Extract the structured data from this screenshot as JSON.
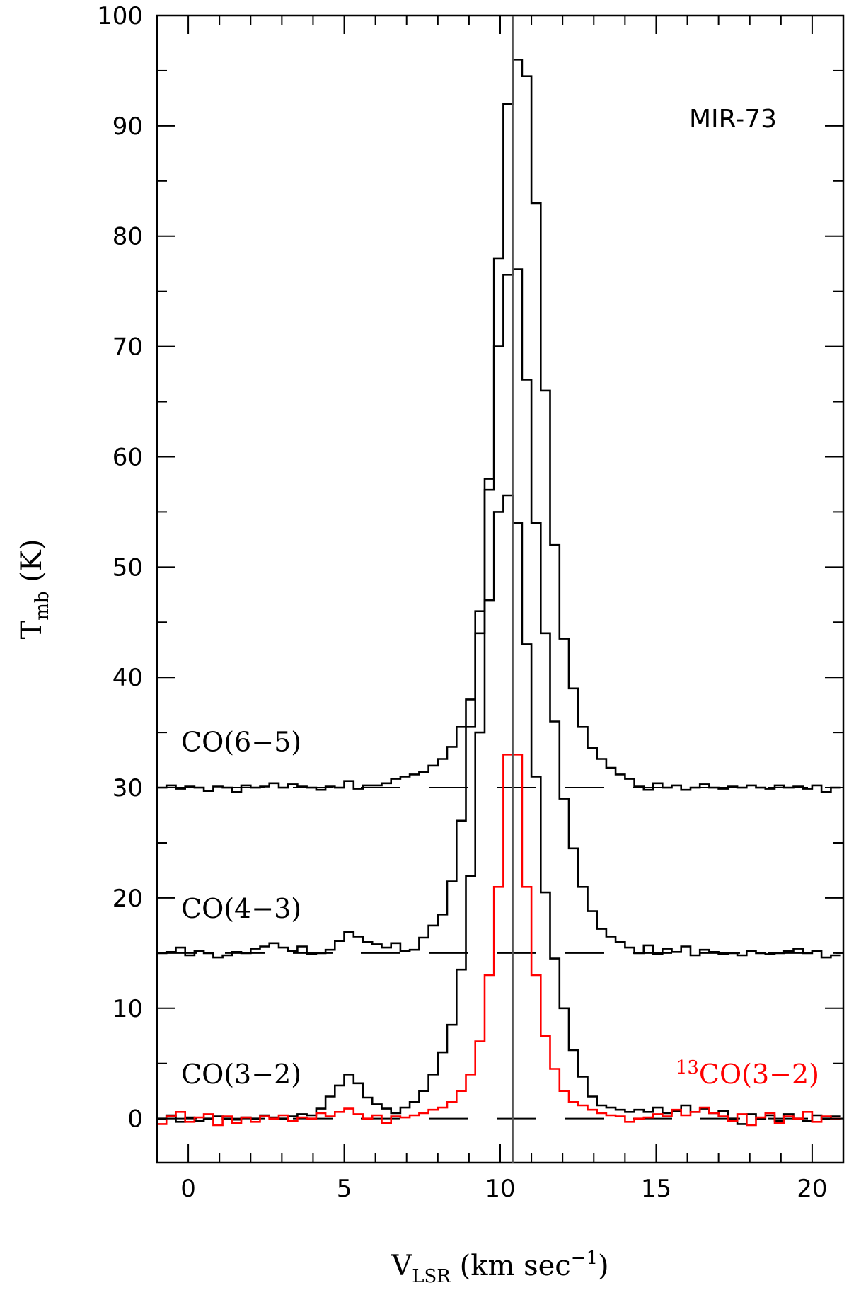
{
  "chart_data": {
    "type": "line",
    "title": "MIR-73",
    "xlabel": {
      "main": "V",
      "sub": "LSR",
      "unit_pre": " (km sec",
      "unit_sup": "−1",
      "unit_post": ")"
    },
    "ylabel": {
      "main": "T",
      "sub": "mb",
      "unit": " (K)"
    },
    "xlim": [
      -1,
      21
    ],
    "ylim": [
      -4,
      100
    ],
    "x_ticks": [
      0,
      5,
      10,
      15,
      20
    ],
    "y_ticks": [
      0,
      10,
      20,
      30,
      40,
      50,
      60,
      70,
      80,
      90,
      100
    ],
    "channel_width": 0.3,
    "central_velocity": 10.4,
    "series": [
      {
        "name": "CO(6−5)",
        "label_pre": "",
        "label_sup": "",
        "label_main": "CO(6−5)",
        "color": "#000000",
        "baseline": 30,
        "x": [
          -1.0,
          -0.7,
          -0.4,
          -0.1,
          0.2,
          0.5,
          0.8,
          1.1,
          1.4,
          1.7,
          2.0,
          2.3,
          2.6,
          2.9,
          3.2,
          3.5,
          3.8,
          4.1,
          4.4,
          4.7,
          5.0,
          5.3,
          5.6,
          5.9,
          6.2,
          6.5,
          6.8,
          7.1,
          7.4,
          7.7,
          8.0,
          8.3,
          8.6,
          8.9,
          9.2,
          9.5,
          9.8,
          10.1,
          10.4,
          10.7,
          11.0,
          11.3,
          11.6,
          11.9,
          12.2,
          12.5,
          12.8,
          13.1,
          13.4,
          13.7,
          14.0,
          14.3,
          14.6,
          14.9,
          15.2,
          15.5,
          15.8,
          16.1,
          16.4,
          16.7,
          17.0,
          17.3,
          17.6,
          17.9,
          18.2,
          18.5,
          18.8,
          19.1,
          19.4,
          19.7,
          20.0,
          20.3,
          20.6
        ],
        "values": [
          30.0,
          30.2,
          29.9,
          30.1,
          30.0,
          29.7,
          30.1,
          30.0,
          29.6,
          30.2,
          30.0,
          30.1,
          30.4,
          30.0,
          30.3,
          30.1,
          30.0,
          29.8,
          30.1,
          30.0,
          30.6,
          29.9,
          30.2,
          30.2,
          30.4,
          30.8,
          31.0,
          31.2,
          31.4,
          32.0,
          32.6,
          33.7,
          35.5,
          38.0,
          44.0,
          58.0,
          78.0,
          92.0,
          96.0,
          94.5,
          83.0,
          66.0,
          52.0,
          43.5,
          39.0,
          35.5,
          33.6,
          32.6,
          31.8,
          31.2,
          30.8,
          30.1,
          29.8,
          30.4,
          30.0,
          30.2,
          29.8,
          30.0,
          30.3,
          30.0,
          29.9,
          30.1,
          30.0,
          30.2,
          30.0,
          29.9,
          30.2,
          30.0,
          30.1,
          29.9,
          30.2,
          29.6,
          30.0
        ]
      },
      {
        "name": "CO(4−3)",
        "label_pre": "",
        "label_sup": "",
        "label_main": "CO(4−3)",
        "color": "#000000",
        "baseline": 15,
        "x": [
          -1.0,
          -0.7,
          -0.4,
          -0.1,
          0.2,
          0.5,
          0.8,
          1.1,
          1.4,
          1.7,
          2.0,
          2.3,
          2.6,
          2.9,
          3.2,
          3.5,
          3.8,
          4.1,
          4.4,
          4.7,
          5.0,
          5.3,
          5.6,
          5.9,
          6.2,
          6.5,
          6.8,
          7.1,
          7.4,
          7.7,
          8.0,
          8.3,
          8.6,
          8.9,
          9.2,
          9.5,
          9.8,
          10.1,
          10.4,
          10.7,
          11.0,
          11.3,
          11.6,
          11.9,
          12.2,
          12.5,
          12.8,
          13.1,
          13.4,
          13.7,
          14.0,
          14.3,
          14.6,
          14.9,
          15.2,
          15.5,
          15.8,
          16.1,
          16.4,
          16.7,
          17.0,
          17.3,
          17.6,
          17.9,
          18.2,
          18.5,
          18.8,
          19.1,
          19.4,
          19.7,
          20.0,
          20.3,
          20.6
        ],
        "values": [
          15.0,
          15.1,
          15.5,
          14.8,
          15.2,
          15.0,
          14.6,
          14.8,
          15.1,
          15.0,
          15.4,
          15.6,
          15.9,
          15.5,
          15.2,
          15.6,
          14.9,
          15.0,
          15.3,
          16.1,
          16.9,
          16.5,
          16.0,
          15.8,
          15.5,
          15.9,
          15.2,
          15.3,
          16.4,
          17.5,
          18.5,
          21.5,
          27.0,
          35.5,
          46.0,
          57.0,
          70.0,
          76.5,
          77.0,
          67.0,
          54.0,
          44.0,
          36.0,
          29.0,
          24.5,
          21.0,
          18.8,
          17.2,
          16.5,
          16.0,
          15.5,
          15.0,
          15.7,
          14.9,
          15.4,
          15.1,
          15.6,
          14.8,
          15.3,
          15.1,
          14.9,
          15.0,
          14.8,
          15.2,
          15.0,
          14.9,
          15.0,
          15.2,
          15.4,
          15.0,
          15.2,
          14.6,
          14.8
        ]
      },
      {
        "name": "CO(3−2)",
        "label_pre": "",
        "label_sup": "",
        "label_main": "CO(3−2)",
        "color": "#000000",
        "baseline": 0,
        "x": [
          -1.0,
          -0.7,
          -0.4,
          -0.1,
          0.2,
          0.5,
          0.8,
          1.1,
          1.4,
          1.7,
          2.0,
          2.3,
          2.6,
          2.9,
          3.2,
          3.5,
          3.8,
          4.1,
          4.4,
          4.7,
          5.0,
          5.3,
          5.6,
          5.9,
          6.2,
          6.5,
          6.8,
          7.1,
          7.4,
          7.7,
          8.0,
          8.3,
          8.6,
          8.9,
          9.2,
          9.5,
          9.8,
          10.1,
          10.4,
          10.7,
          11.0,
          11.3,
          11.6,
          11.9,
          12.2,
          12.5,
          12.8,
          13.1,
          13.4,
          13.7,
          14.0,
          14.3,
          14.6,
          14.9,
          15.2,
          15.5,
          15.8,
          16.1,
          16.4,
          16.7,
          17.0,
          17.3,
          17.6,
          17.9,
          18.2,
          18.5,
          18.8,
          19.1,
          19.4,
          19.7,
          20.0,
          20.3,
          20.6
        ],
        "values": [
          0.0,
          0.3,
          -0.3,
          0.1,
          -0.2,
          0.0,
          0.2,
          0.0,
          -0.1,
          0.1,
          0.0,
          0.3,
          0.1,
          0.0,
          0.2,
          0.4,
          0.3,
          0.9,
          2.0,
          3.0,
          4.0,
          3.2,
          1.9,
          1.3,
          0.9,
          0.5,
          1.0,
          1.5,
          2.5,
          4.0,
          6.0,
          8.5,
          13.5,
          22.0,
          35.0,
          47.0,
          55.0,
          56.5,
          54.0,
          43.0,
          31.0,
          20.5,
          14.5,
          10.0,
          6.2,
          3.8,
          2.0,
          1.2,
          1.0,
          0.8,
          0.6,
          0.8,
          0.6,
          1.0,
          0.5,
          0.7,
          1.2,
          0.6,
          0.9,
          0.5,
          0.7,
          0.0,
          -0.5,
          0.4,
          0.0,
          0.3,
          -0.2,
          0.4,
          0.0,
          -0.2,
          0.3,
          0.0,
          0.2
        ]
      },
      {
        "name": "13CO(3−2)",
        "label_pre": "",
        "label_sup": "13",
        "label_main": "CO(3−2)",
        "color": "#ff0000",
        "baseline": 0,
        "x": [
          -1.0,
          -0.7,
          -0.4,
          -0.1,
          0.2,
          0.5,
          0.8,
          1.1,
          1.4,
          1.7,
          2.0,
          2.3,
          2.6,
          2.9,
          3.2,
          3.5,
          3.8,
          4.1,
          4.4,
          4.7,
          5.0,
          5.3,
          5.6,
          5.9,
          6.2,
          6.5,
          6.8,
          7.1,
          7.4,
          7.7,
          8.0,
          8.3,
          8.6,
          8.9,
          9.2,
          9.5,
          9.8,
          10.1,
          10.4,
          10.7,
          11.0,
          11.3,
          11.6,
          11.9,
          12.2,
          12.5,
          12.8,
          13.1,
          13.4,
          13.7,
          14.0,
          14.3,
          14.6,
          14.9,
          15.2,
          15.5,
          15.8,
          16.1,
          16.4,
          16.7,
          17.0,
          17.3,
          17.6,
          17.9,
          18.2,
          18.5,
          18.8,
          19.1,
          19.4,
          19.7,
          20.0,
          20.3,
          20.6
        ],
        "values": [
          -0.5,
          0.2,
          0.6,
          -0.3,
          0.1,
          0.4,
          -0.6,
          0.2,
          -0.4,
          0.1,
          -0.3,
          0.2,
          0.0,
          0.3,
          -0.2,
          0.1,
          0.0,
          0.5,
          0.2,
          0.6,
          0.9,
          0.4,
          0.0,
          0.3,
          -0.4,
          0.2,
          0.1,
          0.3,
          0.5,
          0.8,
          1.0,
          1.5,
          2.5,
          4.0,
          7.0,
          13.0,
          21.0,
          33.0,
          33.0,
          21.0,
          13.0,
          7.5,
          4.5,
          2.5,
          1.5,
          1.2,
          0.8,
          0.5,
          0.3,
          0.2,
          -0.3,
          0.0,
          0.1,
          0.4,
          0.2,
          0.8,
          0.3,
          0.6,
          1.0,
          0.5,
          0.2,
          -0.2,
          0.4,
          -0.6,
          0.1,
          0.5,
          -0.4,
          0.2,
          0.0,
          0.6,
          -0.3,
          0.2,
          0.0
        ]
      }
    ]
  }
}
